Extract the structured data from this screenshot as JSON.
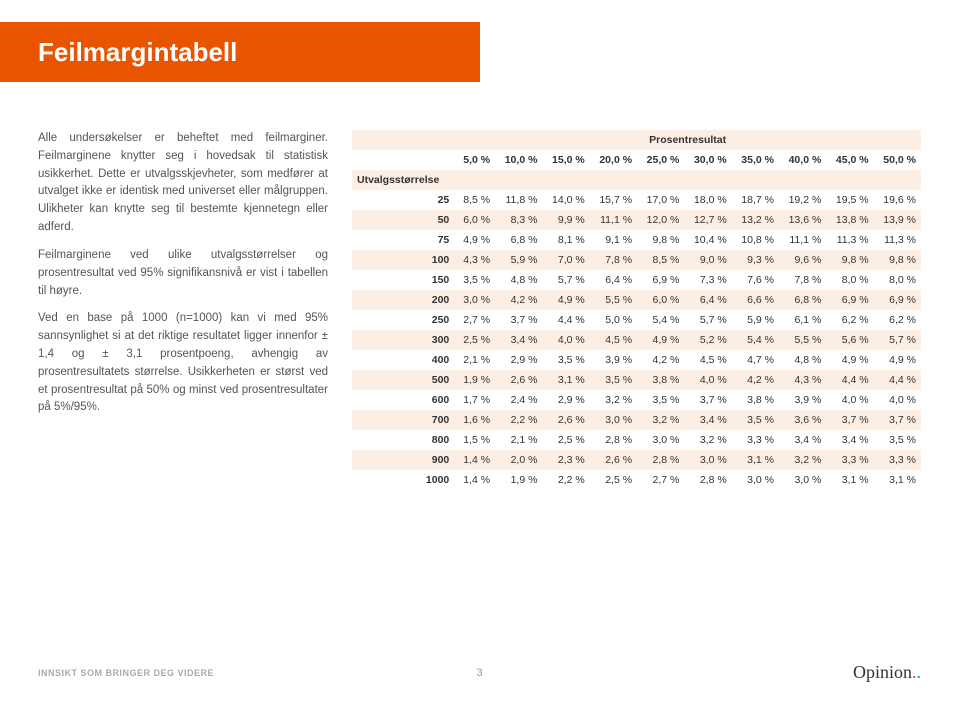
{
  "colors": {
    "header_bg": "#e85400",
    "title_fg": "#ffffff",
    "row_alt_bg": "#fdeee4",
    "row_bg": "#ffffff",
    "text_body": "#555555",
    "text_cell": "#333333",
    "footer_text": "#aaaaaa",
    "logo_dot1": "#e85400",
    "logo_dot2": "#0097c0"
  },
  "title": "Feilmargintabell",
  "paragraphs": [
    "Alle undersøkelser er beheftet med feilmarginer. Feilmarginene knytter seg i hovedsak til statistisk usikkerhet. Dette er utvalgsskjevheter, som medfører at utvalget ikke er identisk med universet eller målgruppen. Ulikheter kan knytte seg til bestemte kjennetegn eller adferd.",
    "Feilmarginene ved ulike utvalgsstørrelser og prosentresultat ved 95% signifikansnivå er vist i tabellen til høyre.",
    "Ved en base på 1000 (n=1000) kan vi med 95% sannsynlighet si at det riktige resultatet ligger innenfor ± 1,4 og ± 3,1 prosentpoeng, avhengig av prosentresultatets størrelse. Usikkerheten er størst ved et prosentresultat på 50% og minst ved prosentresultater på 5%/95%."
  ],
  "table": {
    "top_label": "Prosentresultat",
    "side_label": "Utvalgsstørrelse",
    "col_headers": [
      "5,0 %",
      "10,0 %",
      "15,0 %",
      "20,0 %",
      "25,0 %",
      "30,0 %",
      "35,0 %",
      "40,0 %",
      "45,0 %",
      "50,0 %"
    ],
    "row_headers": [
      "25",
      "50",
      "75",
      "100",
      "150",
      "200",
      "250",
      "300",
      "400",
      "500",
      "600",
      "700",
      "800",
      "900",
      "1000"
    ],
    "rows": [
      [
        "8,5 %",
        "11,8 %",
        "14,0 %",
        "15,7 %",
        "17,0 %",
        "18,0 %",
        "18,7 %",
        "19,2 %",
        "19,5 %",
        "19,6 %"
      ],
      [
        "6,0 %",
        "8,3 %",
        "9,9 %",
        "11,1 %",
        "12,0 %",
        "12,7 %",
        "13,2 %",
        "13,6 %",
        "13,8 %",
        "13,9 %"
      ],
      [
        "4,9 %",
        "6,8 %",
        "8,1 %",
        "9,1 %",
        "9,8 %",
        "10,4 %",
        "10,8 %",
        "11,1 %",
        "11,3 %",
        "11,3 %"
      ],
      [
        "4,3 %",
        "5,9 %",
        "7,0 %",
        "7,8 %",
        "8,5 %",
        "9,0 %",
        "9,3 %",
        "9,6 %",
        "9,8 %",
        "9,8 %"
      ],
      [
        "3,5 %",
        "4,8 %",
        "5,7 %",
        "6,4 %",
        "6,9 %",
        "7,3 %",
        "7,6 %",
        "7,8 %",
        "8,0 %",
        "8,0 %"
      ],
      [
        "3,0 %",
        "4,2 %",
        "4,9 %",
        "5,5 %",
        "6,0 %",
        "6,4 %",
        "6,6 %",
        "6,8 %",
        "6,9 %",
        "6,9 %"
      ],
      [
        "2,7 %",
        "3,7 %",
        "4,4 %",
        "5,0 %",
        "5,4 %",
        "5,7 %",
        "5,9 %",
        "6,1 %",
        "6,2 %",
        "6,2 %"
      ],
      [
        "2,5 %",
        "3,4 %",
        "4,0 %",
        "4,5 %",
        "4,9 %",
        "5,2 %",
        "5,4 %",
        "5,5 %",
        "5,6 %",
        "5,7 %"
      ],
      [
        "2,1 %",
        "2,9 %",
        "3,5 %",
        "3,9 %",
        "4,2 %",
        "4,5 %",
        "4,7 %",
        "4,8 %",
        "4,9 %",
        "4,9 %"
      ],
      [
        "1,9 %",
        "2,6 %",
        "3,1 %",
        "3,5 %",
        "3,8 %",
        "4,0 %",
        "4,2 %",
        "4,3 %",
        "4,4 %",
        "4,4 %"
      ],
      [
        "1,7 %",
        "2,4 %",
        "2,9 %",
        "3,2 %",
        "3,5 %",
        "3,7 %",
        "3,8 %",
        "3,9 %",
        "4,0 %",
        "4,0 %"
      ],
      [
        "1,6 %",
        "2,2 %",
        "2,6 %",
        "3,0 %",
        "3,2 %",
        "3,4 %",
        "3,5 %",
        "3,6 %",
        "3,7 %",
        "3,7 %"
      ],
      [
        "1,5 %",
        "2,1 %",
        "2,5 %",
        "2,8 %",
        "3,0 %",
        "3,2 %",
        "3,3 %",
        "3,4 %",
        "3,4 %",
        "3,5 %"
      ],
      [
        "1,4 %",
        "2,0 %",
        "2,3 %",
        "2,6 %",
        "2,8 %",
        "3,0 %",
        "3,1 %",
        "3,2 %",
        "3,3 %",
        "3,3 %"
      ],
      [
        "1,4 %",
        "1,9 %",
        "2,2 %",
        "2,5 %",
        "2,7 %",
        "2,8 %",
        "3,0 %",
        "3,0 %",
        "3,1 %",
        "3,1 %"
      ]
    ]
  },
  "footer": {
    "tagline": "INNSIKT SOM BRINGER DEG VIDERE",
    "page": "3",
    "logo": "Opinion"
  }
}
